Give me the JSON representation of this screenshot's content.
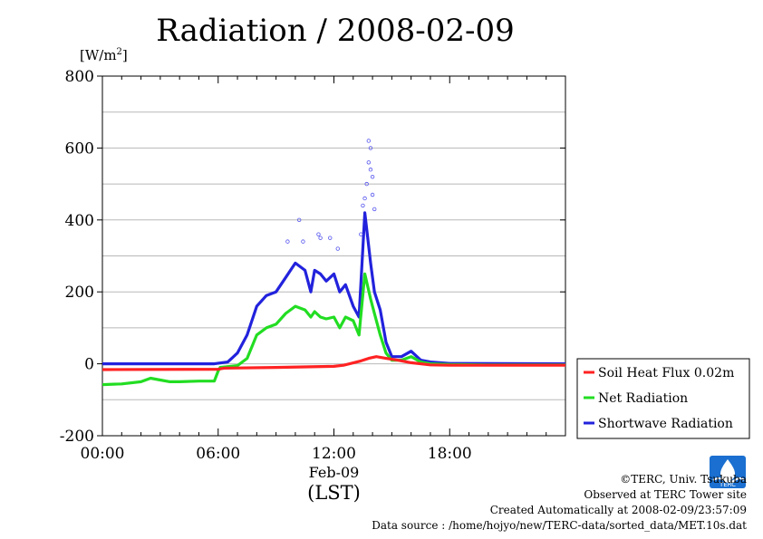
{
  "chart_data": {
    "type": "line",
    "title": "Radiation / 2008-02-09",
    "yunit": "[W/m2]",
    "yunit_base": "[W/m",
    "yunit_sup": "2",
    "yunit_close": "]",
    "ylim": [
      -200,
      800
    ],
    "yticks": [
      "800",
      "600",
      "400",
      "200",
      "0",
      "-200"
    ],
    "yticks_values": [
      800,
      600,
      400,
      200,
      0,
      -200
    ],
    "xlim": [
      0,
      24
    ],
    "xticks": [
      "00:00",
      "06:00",
      "12:00",
      "18:00"
    ],
    "xticks_values": [
      0,
      6,
      12,
      18
    ],
    "xdate": "Feb-09",
    "xlabel": "(LST)",
    "grid": true,
    "legend_position": "right-bottom",
    "series": [
      {
        "name": "Soil Heat Flux 0.02m",
        "color": "#ff2222",
        "x": [
          0,
          6,
          6.3,
          9,
          12,
          12.5,
          13.4,
          13.8,
          14.2,
          14.7,
          15.3,
          16,
          17,
          18,
          24
        ],
        "values": [
          -16,
          -15,
          -12,
          -10,
          -7,
          -4,
          8,
          15,
          20,
          15,
          10,
          3,
          -3,
          -4,
          -4
        ]
      },
      {
        "name": "Net Radiation",
        "color": "#22dd22",
        "x": [
          0,
          1,
          2,
          2.5,
          3,
          3.5,
          4,
          5,
          5.8,
          6,
          6.1,
          7,
          7.5,
          8,
          8.5,
          9,
          9.5,
          10,
          10.5,
          10.8,
          11,
          11.3,
          11.6,
          12,
          12.3,
          12.6,
          13,
          13.3,
          13.6,
          13.9,
          14.1,
          14.4,
          14.7,
          15,
          15.5,
          16,
          16.5,
          17,
          18,
          20,
          24
        ],
        "values": [
          -58,
          -56,
          -50,
          -40,
          -45,
          -50,
          -50,
          -48,
          -48,
          -20,
          -10,
          -5,
          15,
          80,
          100,
          110,
          140,
          160,
          150,
          130,
          145,
          130,
          125,
          130,
          100,
          130,
          120,
          80,
          250,
          180,
          140,
          80,
          30,
          10,
          10,
          20,
          5,
          0,
          -2,
          -3,
          -3
        ]
      },
      {
        "name": "Shortwave Radiation",
        "color": "#2222dd",
        "x": [
          0,
          5.8,
          6.5,
          7,
          7.5,
          8,
          8.5,
          9,
          9.5,
          10,
          10.5,
          10.8,
          11,
          11.3,
          11.6,
          12,
          12.3,
          12.6,
          13,
          13.3,
          13.6,
          13.9,
          14.1,
          14.4,
          14.7,
          15,
          15.5,
          16,
          16.5,
          17,
          18,
          24
        ],
        "values": [
          0,
          0,
          5,
          30,
          80,
          160,
          190,
          200,
          240,
          280,
          260,
          200,
          260,
          250,
          230,
          250,
          200,
          220,
          160,
          130,
          420,
          280,
          200,
          150,
          60,
          20,
          20,
          35,
          10,
          5,
          1,
          0
        ]
      }
    ],
    "shortwave_outliers": {
      "x": [
        9.6,
        10.2,
        10.4,
        11.2,
        11.3,
        11.8,
        12.2,
        13.4,
        13.5,
        13.6,
        13.7,
        13.8,
        13.8,
        13.9,
        13.9,
        14.0,
        14.0,
        14.1
      ],
      "values": [
        340,
        400,
        340,
        360,
        350,
        350,
        320,
        360,
        440,
        460,
        500,
        560,
        620,
        540,
        600,
        520,
        470,
        430
      ]
    }
  },
  "credits": {
    "line1": "©TERC, Univ. Tsukuba",
    "line2": "Observed at TERC Tower site",
    "line3": "Created Automatically at 2008-02-09/23:57:09",
    "line4": "Data source : /home/hojyo/new/TERC-data/sorted_data/MET.10s.dat"
  },
  "logo": {
    "text": "TERC",
    "color": "#1a6fd0"
  }
}
